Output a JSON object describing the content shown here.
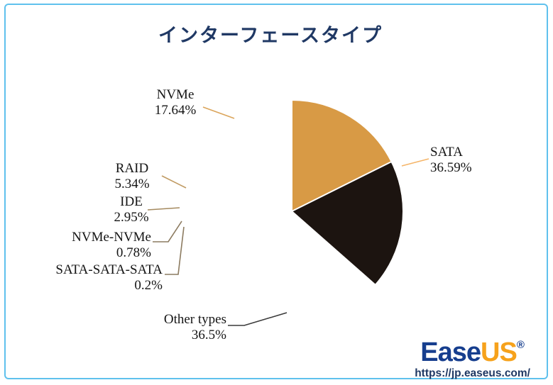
{
  "frame": {
    "border_color": "#5FC1ED"
  },
  "title": {
    "text": "インターフェースタイプ",
    "color": "#1F3864"
  },
  "chart_data": {
    "type": "pie",
    "title": "インターフェースタイプ",
    "unit": "%",
    "direction": "clockwise",
    "start_angle_deg": 0,
    "separator_color": "#FFFFFF",
    "slices": [
      {
        "label": "SATA",
        "value": 36.59,
        "display": "36.59%",
        "color": "#FBB254"
      },
      {
        "label": "Other types",
        "value": 36.5,
        "display": "36.5%",
        "color": "#1C1410"
      },
      {
        "label": "SATA-SATA-SATA",
        "value": 0.2,
        "display": "0.2%",
        "color": "#33281A"
      },
      {
        "label": "NVMe-NVMe",
        "value": 0.78,
        "display": "0.78%",
        "color": "#4E3A1E"
      },
      {
        "label": "IDE",
        "value": 2.95,
        "display": "2.95%",
        "color": "#906C34"
      },
      {
        "label": "RAID",
        "value": 5.34,
        "display": "5.34%",
        "color": "#B0813D"
      },
      {
        "label": "NVMe",
        "value": 17.64,
        "display": "17.64%",
        "color": "#D89A45"
      }
    ]
  },
  "branding": {
    "logo_ease": "Ease",
    "logo_us": "US",
    "registered": "®",
    "url": "https://jp.easeus.com/",
    "logo_blue": "#163E8E",
    "logo_orange": "#F6A21C",
    "url_color": "#1F3864"
  }
}
